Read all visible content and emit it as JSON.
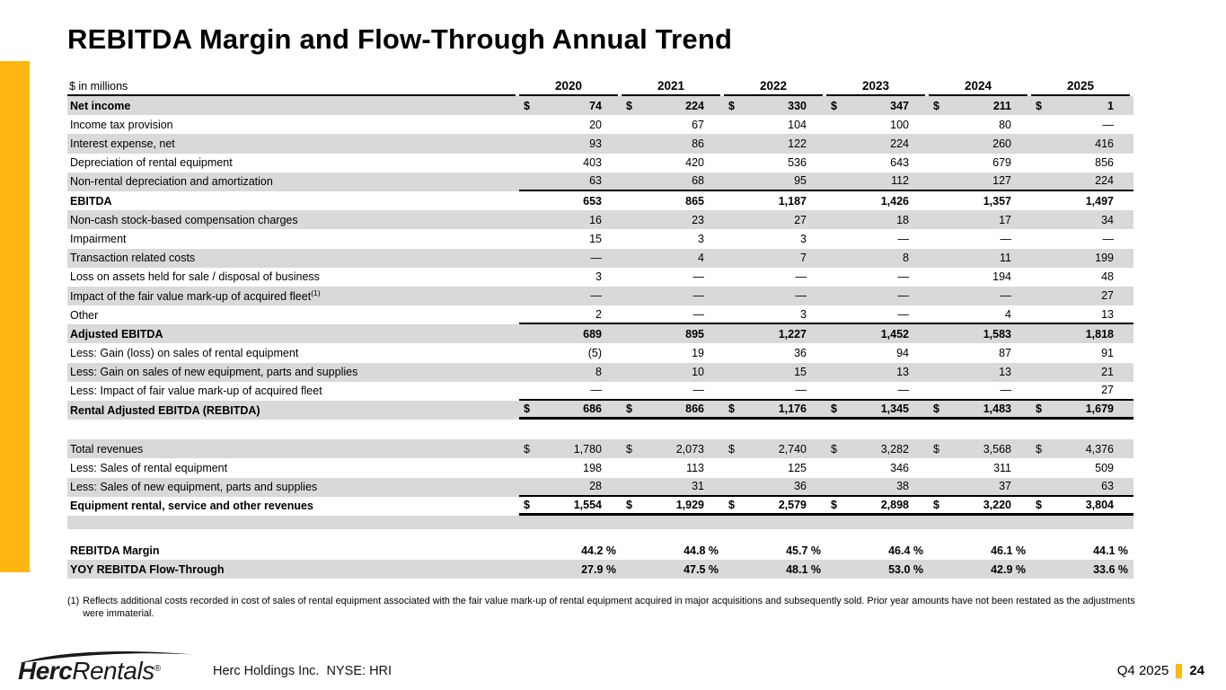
{
  "slide": {
    "title": "REBITDA Margin and Flow-Through Annual Trend",
    "accent_color": "#FFB612",
    "row_shade_color": "#D9D9D9"
  },
  "table": {
    "units_label": "$ in millions",
    "currency_symbol": "$",
    "years": [
      "2020",
      "2021",
      "2022",
      "2023",
      "2024",
      "2025"
    ],
    "rows": [
      {
        "label": "Net income",
        "bold": true,
        "shade": "gray",
        "dollar": true,
        "values": [
          "74",
          "224",
          "330",
          "347",
          "211",
          "1"
        ]
      },
      {
        "label": "Income tax provision",
        "values": [
          "20",
          "67",
          "104",
          "100",
          "80",
          "—"
        ]
      },
      {
        "label": "Interest expense, net",
        "shade": "gray",
        "values": [
          "93",
          "86",
          "122",
          "224",
          "260",
          "416"
        ]
      },
      {
        "label": "Depreciation of rental equipment",
        "values": [
          "403",
          "420",
          "536",
          "643",
          "679",
          "856"
        ]
      },
      {
        "label": "Non-rental depreciation and amortization",
        "shade": "gray",
        "rule": "thin",
        "values": [
          "63",
          "68",
          "95",
          "112",
          "127",
          "224"
        ]
      },
      {
        "label": "EBITDA",
        "bold": true,
        "values": [
          "653",
          "865",
          "1,187",
          "1,426",
          "1,357",
          "1,497"
        ]
      },
      {
        "label": "Non-cash stock-based compensation charges",
        "shade": "gray",
        "values": [
          "16",
          "23",
          "27",
          "18",
          "17",
          "34"
        ]
      },
      {
        "label": "Impairment",
        "values": [
          "15",
          "3",
          "3",
          "—",
          "—",
          "—"
        ]
      },
      {
        "label": "Transaction related costs",
        "shade": "gray",
        "values": [
          "—",
          "4",
          "7",
          "8",
          "11",
          "199"
        ]
      },
      {
        "label": "Loss on assets held for sale / disposal of business",
        "values": [
          "3",
          "—",
          "—",
          "—",
          "194",
          "48"
        ]
      },
      {
        "label": "Impact of the fair value mark-up of acquired fleet",
        "sup": "(1)",
        "shade": "gray",
        "values": [
          "—",
          "—",
          "—",
          "—",
          "—",
          "27"
        ]
      },
      {
        "label": "Other",
        "rule": "thin",
        "values": [
          "2",
          "—",
          "3",
          "—",
          "4",
          "13"
        ]
      },
      {
        "label": "Adjusted EBITDA",
        "bold": true,
        "shade": "gray",
        "values": [
          "689",
          "895",
          "1,227",
          "1,452",
          "1,583",
          "1,818"
        ]
      },
      {
        "label": "Less: Gain (loss) on sales of rental equipment",
        "values": [
          "(5)",
          "19",
          "36",
          "94",
          "87",
          "91"
        ]
      },
      {
        "label": "Less: Gain on sales of new equipment, parts and supplies",
        "shade": "gray",
        "values": [
          "8",
          "10",
          "15",
          "13",
          "13",
          "21"
        ]
      },
      {
        "label": "Less: Impact of fair value mark-up of acquired fleet",
        "rule": "thin",
        "values": [
          "—",
          "—",
          "—",
          "—",
          "—",
          "27"
        ]
      },
      {
        "label": "Rental Adjusted EBITDA (REBITDA)",
        "bold": true,
        "shade": "gray",
        "dollar": true,
        "rule": "thick",
        "values": [
          "686",
          "866",
          "1,176",
          "1,345",
          "1,483",
          "1,679"
        ]
      },
      {
        "type": "gap",
        "height": 22
      },
      {
        "label": "Total revenues",
        "shade": "gray",
        "dollar": true,
        "values": [
          "1,780",
          "2,073",
          "2,740",
          "3,282",
          "3,568",
          "4,376"
        ]
      },
      {
        "label": "Less: Sales of rental equipment",
        "values": [
          "198",
          "113",
          "125",
          "346",
          "311",
          "509"
        ]
      },
      {
        "label": "Less: Sales of new equipment, parts and supplies",
        "shade": "gray",
        "rule": "thin",
        "values": [
          "28",
          "31",
          "36",
          "38",
          "37",
          "63"
        ]
      },
      {
        "label": "Equipment rental, service and other revenues",
        "bold": true,
        "dollar": true,
        "rule": "thick",
        "values": [
          "1,554",
          "1,929",
          "2,579",
          "2,898",
          "3,220",
          "3,804"
        ]
      },
      {
        "type": "gap",
        "height": 15,
        "shade": "gray"
      },
      {
        "type": "gap",
        "height": 13
      },
      {
        "label": "REBITDA Margin",
        "bold": true,
        "pct": true,
        "values": [
          "44.2 %",
          "44.8 %",
          "45.7 %",
          "46.4 %",
          "46.1 %",
          "44.1 %"
        ]
      },
      {
        "label": "YOY REBITDA Flow-Through",
        "bold": true,
        "shade": "gray",
        "pct": true,
        "values": [
          "27.9 %",
          "47.5 %",
          "48.1 %",
          "53.0 %",
          "42.9 %",
          "33.6 %"
        ]
      }
    ]
  },
  "footnote": {
    "marker": "(1)",
    "text": "Reflects additional costs recorded in cost of sales of rental equipment associated with the fair value mark-up of rental equipment acquired in major acquisitions and subsequently sold. Prior year amounts have not been restated as the adjustments were immaterial."
  },
  "footer": {
    "logo_bold": "Herc",
    "logo_light": "Rentals",
    "logo_registered": "®",
    "company_line": "Herc Holdings Inc.  NYSE: HRI",
    "period": "Q4 2025",
    "page_number": "24"
  }
}
